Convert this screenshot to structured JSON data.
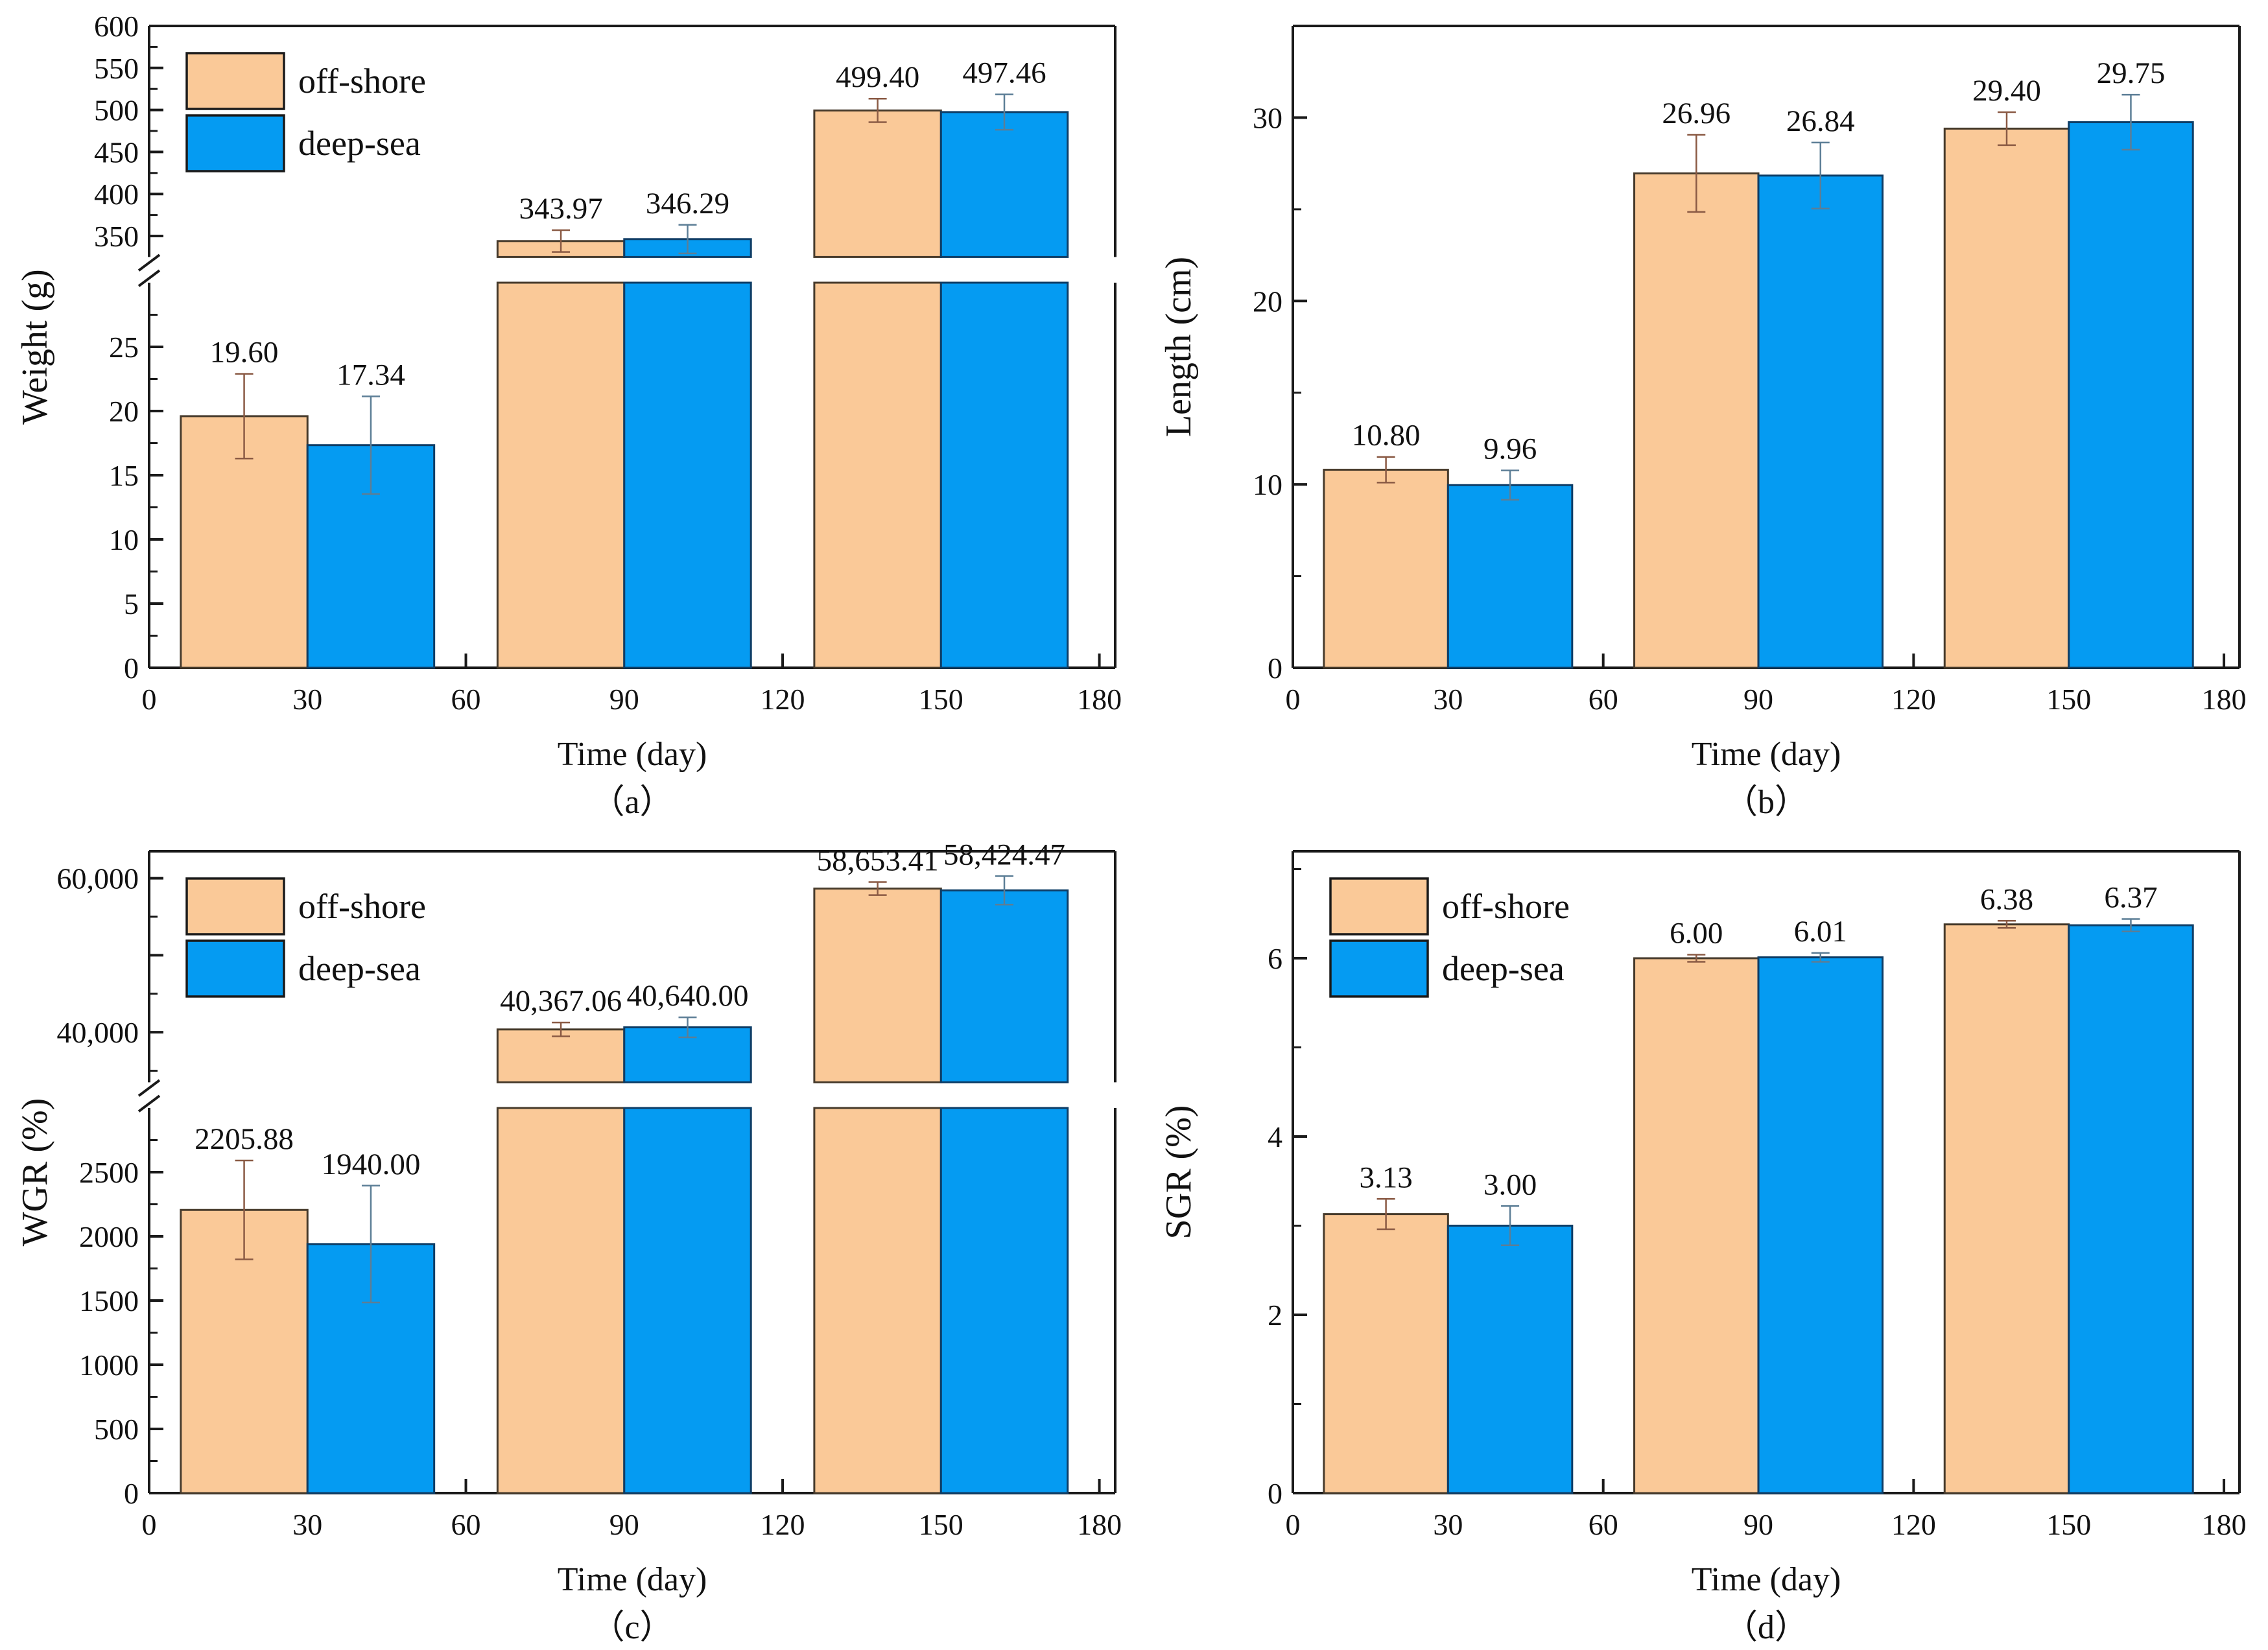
{
  "figure": {
    "description_labels": {
      "x_axis_label": "Time (day)",
      "legend_offshore": "off-shore",
      "legend_deepsea": "deep-sea"
    },
    "colors": {
      "offshore_fill": "#FAC998",
      "offshore_edge": "#463A2B",
      "offshore_err": "#8A5A44",
      "deepsea_fill": "#059BF2",
      "deepsea_edge": "#0E3D66",
      "deepsea_err": "#5C7E96",
      "frame": "#1A1A1A",
      "text": "#111111"
    }
  },
  "chart_data": [
    {
      "id": "a",
      "type": "bar",
      "title": "",
      "ylabel": "Weight (g)",
      "xlabel": "Time (day)",
      "caption": "（a）",
      "legend": {
        "show": true,
        "position": "top-left",
        "items": [
          "off-shore",
          "deep-sea"
        ]
      },
      "xlim": [
        0,
        183
      ],
      "x_major_ticks": [
        0,
        30,
        60,
        90,
        120,
        150,
        180
      ],
      "x_minor_ticks": [
        15,
        45,
        75,
        105,
        135,
        165
      ],
      "broken_axis": true,
      "segments": [
        {
          "ylim": [
            325,
            600
          ],
          "hfrac": 0.36,
          "ticks": [
            {
              "v": 350,
              "label": "350"
            },
            {
              "v": 400,
              "label": "400"
            },
            {
              "v": 450,
              "label": "450"
            },
            {
              "v": 500,
              "label": "500"
            },
            {
              "v": 550,
              "label": "550"
            },
            {
              "v": 600,
              "label": "600"
            }
          ],
          "minor": [
            375,
            425,
            475,
            525,
            575
          ]
        },
        {
          "ylim": [
            0,
            30
          ],
          "hfrac": 0.6,
          "ticks": [
            {
              "v": 0,
              "label": "0"
            },
            {
              "v": 5,
              "label": "5"
            },
            {
              "v": 10,
              "label": "10"
            },
            {
              "v": 15,
              "label": "15"
            },
            {
              "v": 20,
              "label": "20"
            },
            {
              "v": 25,
              "label": "25"
            }
          ],
          "minor": [
            2.5,
            7.5,
            12.5,
            17.5,
            22.5,
            27.5
          ]
        }
      ],
      "categories": [
        30,
        90,
        150
      ],
      "series": [
        {
          "name": "off-shore",
          "values": [
            19.6,
            343.97,
            499.4
          ],
          "labels": [
            "19.60",
            "343.97",
            "499.40"
          ],
          "errors": [
            3.3,
            13,
            14
          ]
        },
        {
          "name": "deep-sea",
          "values": [
            17.34,
            346.29,
            497.46
          ],
          "labels": [
            "17.34",
            "346.29",
            "497.46"
          ],
          "errors": [
            3.8,
            17,
            21
          ]
        }
      ]
    },
    {
      "id": "b",
      "type": "bar",
      "title": "",
      "ylabel": "Length (cm)",
      "xlabel": "Time (day)",
      "caption": "（b）",
      "legend": {
        "show": false,
        "position": "top-left",
        "items": [
          "off-shore",
          "deep-sea"
        ]
      },
      "xlim": [
        0,
        183
      ],
      "x_major_ticks": [
        0,
        30,
        60,
        90,
        120,
        150,
        180
      ],
      "x_minor_ticks": [
        15,
        45,
        75,
        105,
        135,
        165
      ],
      "broken_axis": false,
      "segments": [
        {
          "ylim": [
            0,
            35
          ],
          "hfrac": 1.0,
          "ticks": [
            {
              "v": 0,
              "label": "0"
            },
            {
              "v": 10,
              "label": "10"
            },
            {
              "v": 20,
              "label": "20"
            },
            {
              "v": 30,
              "label": "30"
            }
          ],
          "minor": [
            5,
            15,
            25
          ]
        }
      ],
      "categories": [
        30,
        90,
        150
      ],
      "series": [
        {
          "name": "off-shore",
          "values": [
            10.8,
            26.96,
            29.4
          ],
          "labels": [
            "10.80",
            "26.96",
            "29.40"
          ],
          "errors": [
            0.7,
            2.1,
            0.9
          ]
        },
        {
          "name": "deep-sea",
          "values": [
            9.96,
            26.84,
            29.75
          ],
          "labels": [
            "9.96",
            "26.84",
            "29.75"
          ],
          "errors": [
            0.8,
            1.8,
            1.5
          ]
        }
      ]
    },
    {
      "id": "c",
      "type": "bar",
      "title": "",
      "ylabel": "WGR (%)",
      "xlabel": "Time (day)",
      "caption": "（c）",
      "legend": {
        "show": true,
        "position": "top-left",
        "items": [
          "off-shore",
          "deep-sea"
        ]
      },
      "xlim": [
        0,
        183
      ],
      "x_major_ticks": [
        0,
        30,
        60,
        90,
        120,
        150,
        180
      ],
      "x_minor_ticks": [
        15,
        45,
        75,
        105,
        135,
        165
      ],
      "broken_axis": true,
      "segments": [
        {
          "ylim": [
            33500,
            63500
          ],
          "hfrac": 0.36,
          "ticks": [
            {
              "v": 40000,
              "label": "40,000"
            },
            {
              "v": 50000,
              "label": ""
            },
            {
              "v": 60000,
              "label": "60,000"
            }
          ],
          "minor": [
            35000,
            45000,
            55000
          ]
        },
        {
          "ylim": [
            0,
            3000
          ],
          "hfrac": 0.6,
          "ticks": [
            {
              "v": 0,
              "label": "0"
            },
            {
              "v": 500,
              "label": "500"
            },
            {
              "v": 1000,
              "label": "1000"
            },
            {
              "v": 1500,
              "label": "1500"
            },
            {
              "v": 2000,
              "label": "2000"
            },
            {
              "v": 2500,
              "label": "2500"
            }
          ],
          "minor": [
            250,
            750,
            1250,
            1750,
            2250,
            2750
          ]
        }
      ],
      "categories": [
        30,
        90,
        150
      ],
      "series": [
        {
          "name": "off-shore",
          "values": [
            2205.88,
            40367.06,
            58653.41
          ],
          "labels": [
            "2205.88",
            "40,367.06",
            "58,653.41"
          ],
          "errors": [
            385,
            900,
            850
          ]
        },
        {
          "name": "deep-sea",
          "values": [
            1940.0,
            40640.0,
            58424.47
          ],
          "labels": [
            "1940.00",
            "40,640.00",
            "58,424.47"
          ],
          "errors": [
            455,
            1300,
            1850
          ]
        }
      ]
    },
    {
      "id": "d",
      "type": "bar",
      "title": "",
      "ylabel": "SGR (%)",
      "xlabel": "Time (day)",
      "caption": "（d）",
      "legend": {
        "show": true,
        "position": "top-left",
        "items": [
          "off-shore",
          "deep-sea"
        ]
      },
      "xlim": [
        0,
        183
      ],
      "x_major_ticks": [
        0,
        30,
        60,
        90,
        120,
        150,
        180
      ],
      "x_minor_ticks": [
        15,
        45,
        75,
        105,
        135,
        165
      ],
      "broken_axis": false,
      "segments": [
        {
          "ylim": [
            0,
            7.2
          ],
          "hfrac": 1.0,
          "ticks": [
            {
              "v": 0,
              "label": "0"
            },
            {
              "v": 2,
              "label": "2"
            },
            {
              "v": 4,
              "label": "4"
            },
            {
              "v": 6,
              "label": "6"
            }
          ],
          "minor": [
            1,
            3,
            5,
            7
          ]
        }
      ],
      "categories": [
        30,
        90,
        150
      ],
      "series": [
        {
          "name": "off-shore",
          "values": [
            3.13,
            6.0,
            6.38
          ],
          "labels": [
            "3.13",
            "6.00",
            "6.38"
          ],
          "errors": [
            0.17,
            0.04,
            0.04
          ]
        },
        {
          "name": "deep-sea",
          "values": [
            3.0,
            6.01,
            6.37
          ],
          "labels": [
            "3.00",
            "6.01",
            "6.37"
          ],
          "errors": [
            0.22,
            0.05,
            0.07
          ]
        }
      ]
    }
  ]
}
